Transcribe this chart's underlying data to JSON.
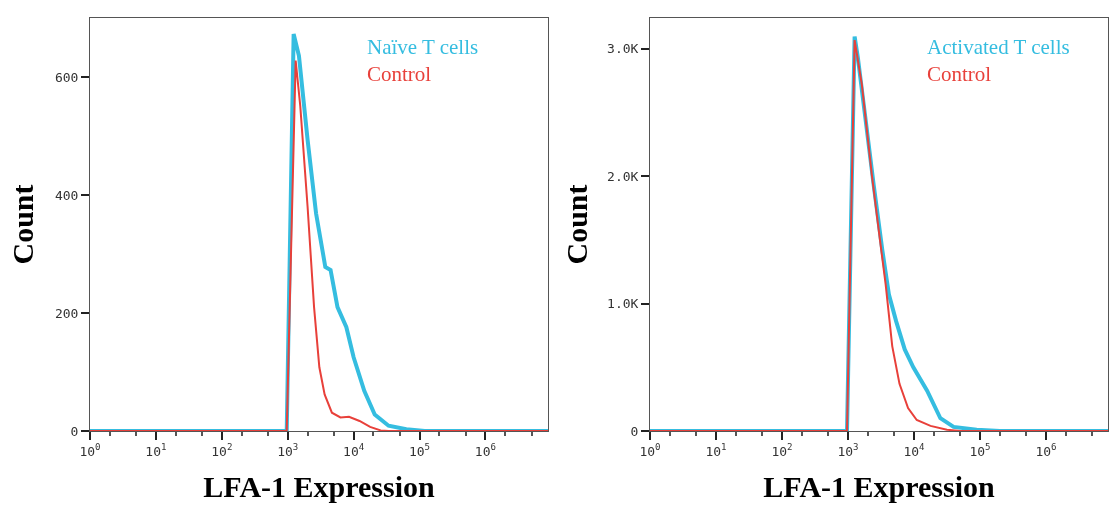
{
  "chart_data": [
    {
      "type": "line",
      "xlabel": "LFA-1 Expression",
      "ylabel": "Count",
      "log": "x",
      "xlim": [
        1,
        8900000
      ],
      "ylim": [
        0,
        700
      ],
      "xticks": [
        {
          "value": 1,
          "label": "10$^{0}$"
        },
        {
          "value": 10,
          "label": "10$^{1}$"
        },
        {
          "value": 100,
          "label": "10$^{2}$"
        },
        {
          "value": 1000,
          "label": "10$^{3}$"
        },
        {
          "value": 10000,
          "label": "10$^{4}$"
        },
        {
          "value": 100000,
          "label": "10$^{5}$"
        },
        {
          "value": 1000000,
          "label": "10$^{6}$"
        }
      ],
      "yticks": [
        0,
        200,
        400,
        600
      ],
      "marker": "none",
      "series": [
        {
          "name": "Naïve T cells",
          "color": "#35bde0",
          "x": [
            1,
            966,
            1230,
            1480,
            2000,
            2690,
            3720,
            4470,
            5690,
            7760,
            10000,
            14500,
            20900,
            33900,
            63100,
            120000,
            8900000
          ],
          "values": [
            0,
            0,
            673,
            636,
            494,
            369,
            278,
            273,
            210,
            176,
            125,
            68,
            28,
            9,
            3,
            0,
            0
          ]
        },
        {
          "name": "Control",
          "color": "#e8403a",
          "x": [
            1,
            966,
            1320,
            1550,
            2000,
            2510,
            3020,
            3630,
            4680,
            6310,
            8510,
            12300,
            17800,
            25700,
            33900,
            8900000
          ],
          "values": [
            0,
            0,
            628,
            551,
            381,
            210,
            108,
            62,
            31,
            23,
            24,
            17,
            7,
            1,
            0,
            0
          ]
        }
      ]
    },
    {
      "type": "line",
      "xlabel": "LFA-1 Expression",
      "ylabel": "Count",
      "log": "x",
      "xlim": [
        1,
        8700000
      ],
      "ylim": [
        0,
        3240
      ],
      "xticks": [
        {
          "value": 1,
          "label": "10$^{0}$"
        },
        {
          "value": 10,
          "label": "10$^{1}$"
        },
        {
          "value": 100,
          "label": "10$^{2}$"
        },
        {
          "value": 1000,
          "label": "10$^{3}$"
        },
        {
          "value": 10000,
          "label": "10$^{4}$"
        },
        {
          "value": 100000,
          "label": "10$^{5}$"
        },
        {
          "value": 1000000,
          "label": "10$^{6}$"
        }
      ],
      "yticks": [
        0,
        {
          "value": 1000,
          "label": "1.0K"
        },
        {
          "value": 2000,
          "label": "2.0K"
        },
        {
          "value": 3000,
          "label": "3.0K"
        }
      ],
      "marker": "none",
      "series": [
        {
          "name": "Activated T cells",
          "color": "#35bde0",
          "x": [
            1,
            966,
            1260,
            1410,
            1820,
            2450,
            3310,
            4170,
            5370,
            7240,
            9770,
            15800,
            25100,
            39800,
            89100,
            200000,
            8700000
          ],
          "values": [
            0,
            0,
            3094,
            2930,
            2470,
            1930,
            1420,
            1070,
            860,
            640,
            500,
            316,
            100,
            32,
            10,
            0,
            0
          ]
        },
        {
          "name": "Control",
          "color": "#e8403a",
          "x": [
            1,
            966,
            1260,
            1620,
            2290,
            3090,
            3720,
            4680,
            6030,
            8130,
            11000,
            17800,
            31600,
            50100,
            8700000
          ],
          "values": [
            0,
            0,
            3067,
            2720,
            2015,
            1476,
            1150,
            666,
            370,
            180,
            86,
            40,
            10,
            0,
            0
          ]
        }
      ]
    }
  ]
}
